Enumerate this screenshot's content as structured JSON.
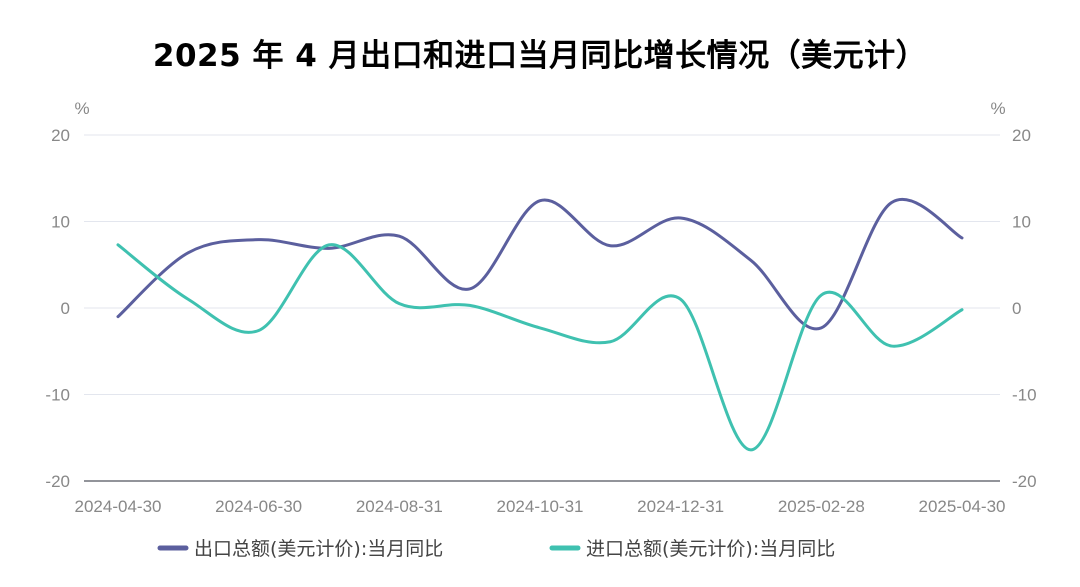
{
  "chart_data": {
    "type": "line",
    "title": "2025 年 4 月出口和进口当月同比增长情况（美元计）",
    "y_unit_left": "%",
    "y_unit_right": "%",
    "ylim": [
      -20,
      20
    ],
    "yticks": [
      20,
      10,
      0,
      -10,
      -20
    ],
    "ytick_labels": [
      "20",
      "10",
      "0",
      "-10",
      "-20"
    ],
    "x": [
      "2024-04-30",
      "2024-05-31",
      "2024-06-30",
      "2024-07-31",
      "2024-08-31",
      "2024-09-30",
      "2024-10-31",
      "2024-11-30",
      "2024-12-31",
      "2025-01-31",
      "2025-02-28",
      "2025-03-31",
      "2025-04-30"
    ],
    "x_tick_labels": [
      "2024-04-30",
      "2024-06-30",
      "2024-08-31",
      "2024-10-31",
      "2024-12-31",
      "2025-02-28",
      "2025-04-30"
    ],
    "grid": true,
    "legend_position": "bottom",
    "series": [
      {
        "name": "出口总额(美元计价):当月同比",
        "color": "#5b5f9e",
        "values": [
          -1.0,
          6.4,
          7.9,
          6.9,
          8.3,
          2.2,
          12.4,
          7.2,
          10.4,
          5.5,
          -2.3,
          12.2,
          8.1
        ]
      },
      {
        "name": "进口总额(美元计价):当月同比",
        "color": "#3fc1b0",
        "values": [
          7.3,
          1.0,
          -2.6,
          7.3,
          0.5,
          0.3,
          -2.3,
          -3.9,
          1.0,
          -16.4,
          1.5,
          -4.4,
          -0.2
        ]
      }
    ]
  }
}
